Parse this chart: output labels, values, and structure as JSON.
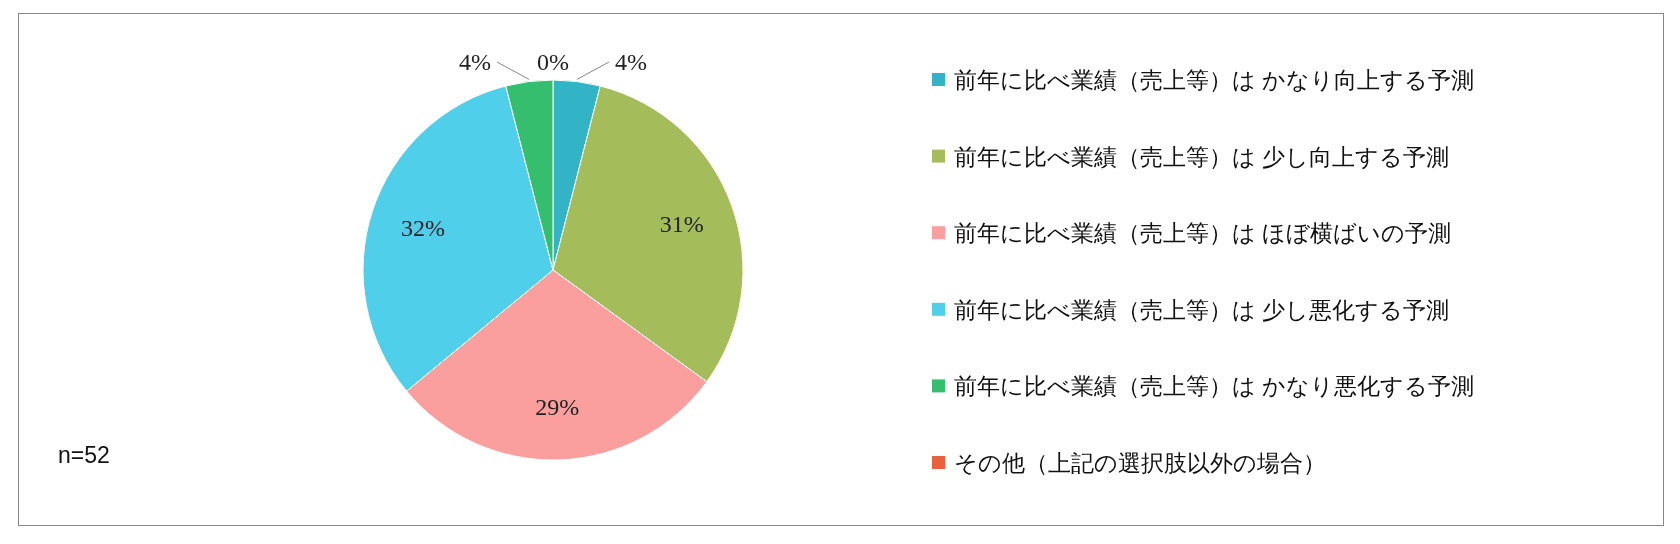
{
  "chart_data": {
    "type": "pie",
    "categories": [
      "前年に比べ業績（売上等）は かなり向上する予測",
      "前年に比べ業績（売上等）は 少し向上する予測",
      "前年に比べ業績（売上等）は ほぼ横ばいの予測",
      "前年に比べ業績（売上等）は 少し悪化する予測",
      "前年に比べ業績（売上等）は かなり悪化する予測",
      "その他（上記の選択肢以外の場合）"
    ],
    "values": [
      4,
      31,
      29,
      32,
      4,
      0
    ],
    "colors": [
      "#33b4c6",
      "#a5bc5b",
      "#fb9e9e",
      "#50cfeb",
      "#35be6e",
      "#e8613c"
    ],
    "value_labels": [
      "4%",
      "31%",
      "29%",
      "32%",
      "4%",
      "0%"
    ],
    "legend": "right",
    "annotations": [
      "n=52"
    ]
  }
}
